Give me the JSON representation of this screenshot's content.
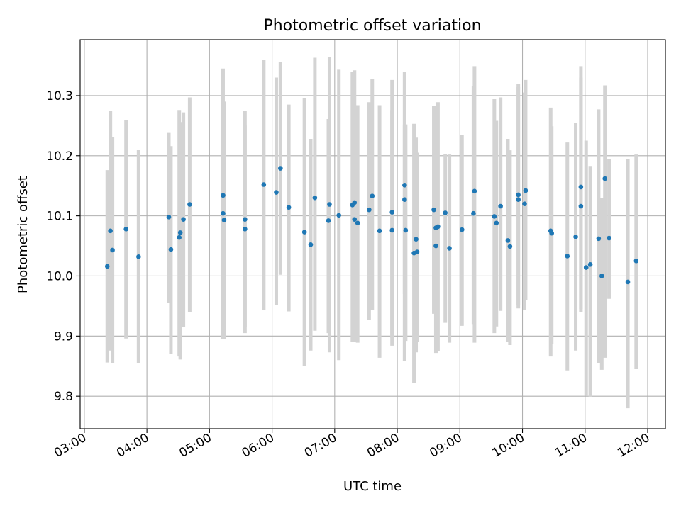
{
  "chart_data": {
    "type": "scatter",
    "title": "Photometric offset variation",
    "xlabel": "UTC time",
    "ylabel": "Photometric offset",
    "xlim": [
      "02:56",
      "12:17"
    ],
    "ylim": [
      9.746,
      10.393
    ],
    "grid": true,
    "x_ticks": [
      "03:00",
      "04:00",
      "05:00",
      "06:00",
      "07:00",
      "08:00",
      "09:00",
      "10:00",
      "11:00",
      "12:00"
    ],
    "y_ticks": [
      "9.8",
      "9.9",
      "10.0",
      "10.1",
      "10.2",
      "10.3"
    ],
    "errorbar_color": "#d3d3d3",
    "marker_color": "#1f77b4",
    "series": [
      {
        "x": [
          "03:22",
          "03:25",
          "03:27",
          "03:40",
          "03:52",
          "04:21",
          "04:23",
          "04:31",
          "04:32",
          "04:35",
          "04:41",
          "05:13",
          "05:13",
          "05:14",
          "05:34",
          "05:34",
          "05:52",
          "06:04",
          "06:08",
          "06:16",
          "06:31",
          "06:37",
          "06:41",
          "06:54",
          "06:55",
          "07:04",
          "07:17",
          "07:19",
          "07:19",
          "07:22",
          "07:33",
          "07:36",
          "07:43",
          "07:55",
          "07:55",
          "08:07",
          "08:07",
          "08:08",
          "08:16",
          "08:18",
          "08:19",
          "08:35",
          "08:37",
          "08:37",
          "08:39",
          "08:46",
          "08:50",
          "09:02",
          "09:13",
          "09:14",
          "09:33",
          "09:35",
          "09:39",
          "09:46",
          "09:48",
          "09:56",
          "09:56",
          "10:02",
          "10:03",
          "10:27",
          "10:28",
          "10:43",
          "10:51",
          "10:56",
          "10:56",
          "11:01",
          "11:05",
          "11:13",
          "11:16",
          "11:19",
          "11:23",
          "11:41",
          "11:49"
        ],
        "y": [
          10.016,
          10.075,
          10.043,
          10.078,
          10.032,
          10.098,
          10.044,
          10.064,
          10.072,
          10.094,
          10.119,
          10.134,
          10.104,
          10.093,
          10.094,
          10.078,
          10.152,
          10.139,
          10.179,
          10.114,
          10.073,
          10.052,
          10.13,
          10.092,
          10.119,
          10.101,
          10.118,
          10.122,
          10.094,
          10.088,
          10.11,
          10.133,
          10.075,
          10.106,
          10.076,
          10.151,
          10.127,
          10.076,
          10.038,
          10.061,
          10.04,
          10.11,
          10.08,
          10.05,
          10.082,
          10.105,
          10.046,
          10.077,
          10.104,
          10.141,
          10.099,
          10.088,
          10.116,
          10.059,
          10.049,
          10.127,
          10.135,
          10.12,
          10.142,
          10.075,
          10.071,
          10.033,
          10.065,
          10.148,
          10.116,
          10.014,
          10.019,
          10.062,
          10.0,
          10.162,
          10.063,
          9.99,
          10.025
        ],
        "err_low": [
          9.856,
          9.876,
          9.855,
          9.896,
          9.855,
          9.955,
          9.87,
          9.866,
          9.861,
          9.915,
          9.94,
          9.899,
          9.895,
          9.895,
          9.915,
          9.905,
          9.944,
          9.951,
          10.002,
          9.941,
          9.85,
          9.876,
          9.909,
          9.905,
          9.873,
          9.86,
          9.891,
          9.891,
          9.904,
          9.889,
          9.927,
          9.944,
          9.864,
          9.897,
          9.884,
          9.97,
          9.859,
          9.892,
          9.822,
          9.873,
          9.891,
          9.937,
          9.897,
          9.872,
          9.875,
          9.922,
          9.889,
          9.917,
          9.92,
          9.889,
          9.905,
          9.916,
          9.942,
          9.891,
          9.885,
          9.946,
          9.952,
          9.943,
          9.96,
          9.866,
          9.887,
          9.843,
          9.876,
          9.945,
          9.94,
          9.801,
          9.799,
          9.855,
          9.844,
          9.864,
          9.962,
          9.78,
          9.845
        ],
        "err_high": [
          10.176,
          10.274,
          10.231,
          10.259,
          10.21,
          10.239,
          10.216,
          10.276,
          10.256,
          10.272,
          10.297,
          10.345,
          10.29,
          10.29,
          10.274,
          10.25,
          10.36,
          10.33,
          10.356,
          10.285,
          10.296,
          10.228,
          10.363,
          10.261,
          10.364,
          10.343,
          10.34,
          10.342,
          10.28,
          10.284,
          10.289,
          10.327,
          10.284,
          10.326,
          10.276,
          10.34,
          10.252,
          10.252,
          10.253,
          10.23,
          10.205,
          10.283,
          10.272,
          10.228,
          10.289,
          10.203,
          10.202,
          10.235,
          10.316,
          10.349,
          10.294,
          10.258,
          10.297,
          10.228,
          10.209,
          10.32,
          10.314,
          10.305,
          10.326,
          10.28,
          10.249,
          10.222,
          10.255,
          10.349,
          10.33,
          10.225,
          10.183,
          10.277,
          10.13,
          10.317,
          10.195,
          10.195,
          10.202
        ]
      }
    ]
  }
}
